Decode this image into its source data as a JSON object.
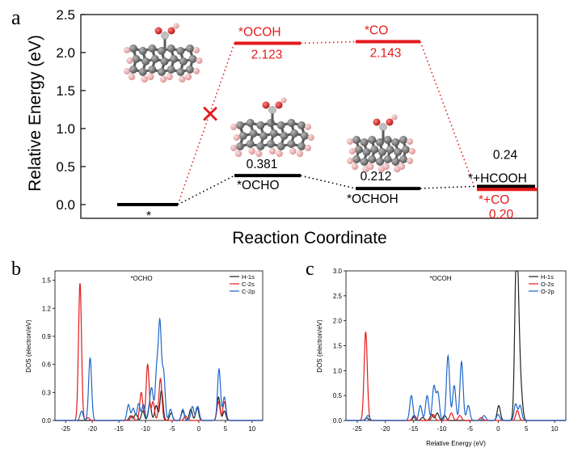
{
  "colors": {
    "black": "#000000",
    "red": "#e41a1c",
    "blue": "#1f66c9",
    "gray": "#666666",
    "atom": "#6f6f6f",
    "h_atom": "#e9a8a8",
    "o_atom": "#d42020"
  },
  "panels": {
    "a": "a",
    "b": "b",
    "c": "c"
  },
  "chart_data": [
    {
      "type": "line",
      "panel": "a",
      "title": "",
      "xlabel": "Reaction Coordinate",
      "ylabel": "Relative Energy (eV)",
      "ylim": [
        -0.2,
        2.5
      ],
      "yticks": [
        "0.0",
        "0.5",
        "1.0",
        "1.5",
        "2.0",
        "2.5"
      ],
      "levels": [
        {
          "id": "start",
          "name": "*",
          "value": 0.0,
          "step": 0,
          "color": "black",
          "show_value": false
        },
        {
          "id": "ocoh",
          "name": "*OCOH",
          "value": 2.123,
          "value_label": "2.123",
          "step": 1,
          "color": "red",
          "show_value": true
        },
        {
          "id": "co_top",
          "name": "*CO",
          "value": 2.143,
          "value_label": "2.143",
          "step": 2,
          "color": "red",
          "show_value": true
        },
        {
          "id": "ocho",
          "name": "*OCHO",
          "value": 0.381,
          "value_label": "0.381",
          "step": 1,
          "color": "black",
          "show_value": true
        },
        {
          "id": "ochoh",
          "name": "*OCHOH",
          "value": 0.212,
          "value_label": "0.212",
          "step": 2,
          "color": "black",
          "show_value": true
        },
        {
          "id": "hcooh",
          "name": "*+HCOOH",
          "value": 0.24,
          "value_label": "0.24",
          "step": 3,
          "color": "black",
          "show_value": true
        },
        {
          "id": "co_end",
          "name": "*+CO",
          "value": 0.2,
          "value_label": "0.20",
          "step": 3,
          "color": "red",
          "show_value": true
        }
      ],
      "paths": [
        {
          "color": "red",
          "sequence": [
            "start",
            "ocoh",
            "co_top",
            "co_end"
          ]
        },
        {
          "color": "black",
          "sequence": [
            "start",
            "ocho",
            "ochoh",
            "hcooh"
          ]
        }
      ],
      "annotations": [
        "×"
      ]
    },
    {
      "type": "line",
      "panel": "b",
      "title": "*OCHO",
      "xlabel": "",
      "ylabel": "DOS (electron/eV)",
      "xlim": [
        -27,
        12
      ],
      "ylim": [
        0,
        1.6
      ],
      "xticks": [
        "-25",
        "-20",
        "-15",
        "-10",
        "-5",
        "0",
        "5",
        "10"
      ],
      "yticks": [
        "0.0",
        "0.3",
        "0.6",
        "0.9",
        "1.2",
        "1.5"
      ],
      "legend": "top-right",
      "series": [
        {
          "name": "H-1s",
          "color": "black",
          "peaks": [
            [
              -12.8,
              0.05
            ],
            [
              -11.8,
              0.07
            ],
            [
              -10.5,
              0.1
            ],
            [
              -9.2,
              0.18
            ],
            [
              -8.0,
              0.16
            ],
            [
              -7.0,
              0.32
            ],
            [
              -5.2,
              0.08
            ],
            [
              -3.0,
              0.1
            ],
            [
              -1.5,
              0.12
            ],
            [
              -0.3,
              0.14
            ],
            [
              3.7,
              0.25
            ],
            [
              4.8,
              0.1
            ]
          ]
        },
        {
          "name": "C-2s",
          "color": "red",
          "peaks": [
            [
              -22.3,
              1.47
            ],
            [
              -20.8,
              0.03
            ],
            [
              -12.5,
              0.05
            ],
            [
              -10.8,
              0.3
            ],
            [
              -9.6,
              0.6
            ],
            [
              -8.6,
              0.2
            ],
            [
              -7.2,
              0.45
            ],
            [
              -2.5,
              0.05
            ],
            [
              3.7,
              0.2
            ],
            [
              4.8,
              0.2
            ]
          ]
        },
        {
          "name": "C-2p",
          "color": "blue",
          "peaks": [
            [
              -22.0,
              0.1
            ],
            [
              -20.4,
              0.67
            ],
            [
              -13.2,
              0.17
            ],
            [
              -12.3,
              0.13
            ],
            [
              -11.3,
              0.18
            ],
            [
              -10.4,
              0.17
            ],
            [
              -9.2,
              0.12
            ],
            [
              -8.8,
              0.3
            ],
            [
              -7.9,
              0.52
            ],
            [
              -7.3,
              1.01
            ],
            [
              -6.6,
              0.5
            ],
            [
              -5.3,
              0.12
            ],
            [
              -3.0,
              0.12
            ],
            [
              -1.2,
              0.15
            ],
            [
              -0.2,
              0.15
            ],
            [
              3.8,
              0.55
            ],
            [
              4.8,
              0.25
            ]
          ]
        }
      ]
    },
    {
      "type": "line",
      "panel": "c",
      "title": "*OCOH",
      "xlabel": "Relative Energy (eV)",
      "ylabel": "DOS (electron/eV)",
      "xlim": [
        -27,
        12
      ],
      "ylim": [
        0,
        3.0
      ],
      "xticks": [
        "-25",
        "-20",
        "-15",
        "-10",
        "-5",
        "0",
        "5",
        "10"
      ],
      "yticks": [
        "0.0",
        "0.5",
        "1.0",
        "1.5",
        "2.0",
        "2.5",
        "3.0"
      ],
      "legend": "top-right",
      "series": [
        {
          "name": "H-1s",
          "color": "black",
          "peaks": [
            [
              -23.3,
              0.05
            ],
            [
              -14.9,
              0.1
            ],
            [
              -13.4,
              0.06
            ],
            [
              -11.8,
              0.12
            ],
            [
              -10.8,
              0.15
            ],
            [
              -9.5,
              0.1
            ],
            [
              0.1,
              0.3
            ],
            [
              3.2,
              2.93
            ],
            [
              3.6,
              1.5
            ],
            [
              4.1,
              0.45
            ]
          ]
        },
        {
          "name": "O-2s",
          "color": "red",
          "peaks": [
            [
              -23.5,
              1.78
            ],
            [
              -14.8,
              0.08
            ],
            [
              -11.5,
              0.12
            ],
            [
              -8.3,
              0.15
            ],
            [
              -6.8,
              0.1
            ],
            [
              -3.0,
              0.06
            ],
            [
              3.4,
              0.2
            ]
          ]
        },
        {
          "name": "O-2p",
          "color": "blue",
          "peaks": [
            [
              -23.1,
              0.1
            ],
            [
              -15.4,
              0.5
            ],
            [
              -13.8,
              0.3
            ],
            [
              -12.6,
              0.5
            ],
            [
              -11.4,
              0.68
            ],
            [
              -10.7,
              0.55
            ],
            [
              -8.9,
              1.3
            ],
            [
              -7.8,
              0.7
            ],
            [
              -6.5,
              1.18
            ],
            [
              -5.3,
              0.3
            ],
            [
              -2.5,
              0.1
            ],
            [
              0.0,
              0.12
            ],
            [
              3.1,
              0.33
            ],
            [
              3.9,
              0.3
            ]
          ]
        }
      ]
    }
  ]
}
